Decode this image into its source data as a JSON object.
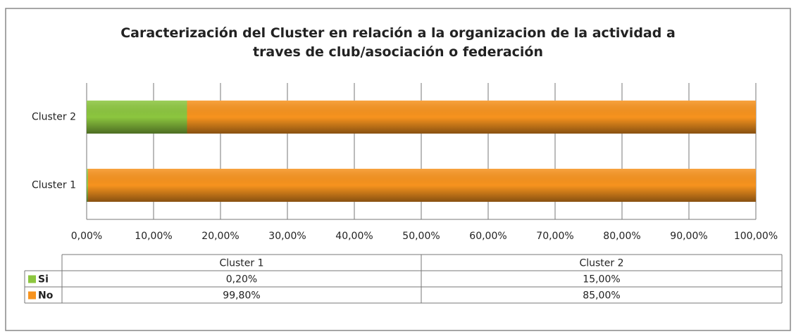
{
  "chart_data": {
    "type": "stacked_barh",
    "title": "Caracterización del Cluster en relación a la organizacion de la actividad a traves de club/asociación o federación",
    "categories": [
      "Cluster 1",
      "Cluster 2"
    ],
    "series": [
      {
        "name": "Si",
        "color": "#8cc63f",
        "values": [
          0.2,
          15
        ],
        "value_labels": [
          "0,20%",
          "15,00%"
        ]
      },
      {
        "name": "No",
        "color": "#f7931e",
        "values": [
          99.8,
          85
        ],
        "value_labels": [
          "99,80%",
          "85,00%"
        ]
      }
    ],
    "xlim": [
      0,
      100
    ],
    "xticks": [
      {
        "value": 0,
        "label": "0,00%"
      },
      {
        "value": 10,
        "label": "10,00%"
      },
      {
        "value": 20,
        "label": "20,00%"
      },
      {
        "value": 30,
        "label": "30,00%"
      },
      {
        "value": 40,
        "label": "40,00%"
      },
      {
        "value": 50,
        "label": "50,00%"
      },
      {
        "value": 60,
        "label": "60,00%"
      },
      {
        "value": 70,
        "label": "70,00%"
      },
      {
        "value": 80,
        "label": "80,00%"
      },
      {
        "value": 90,
        "label": "90,00%"
      },
      {
        "value": 100,
        "label": "100,00%"
      }
    ],
    "grid": true
  }
}
